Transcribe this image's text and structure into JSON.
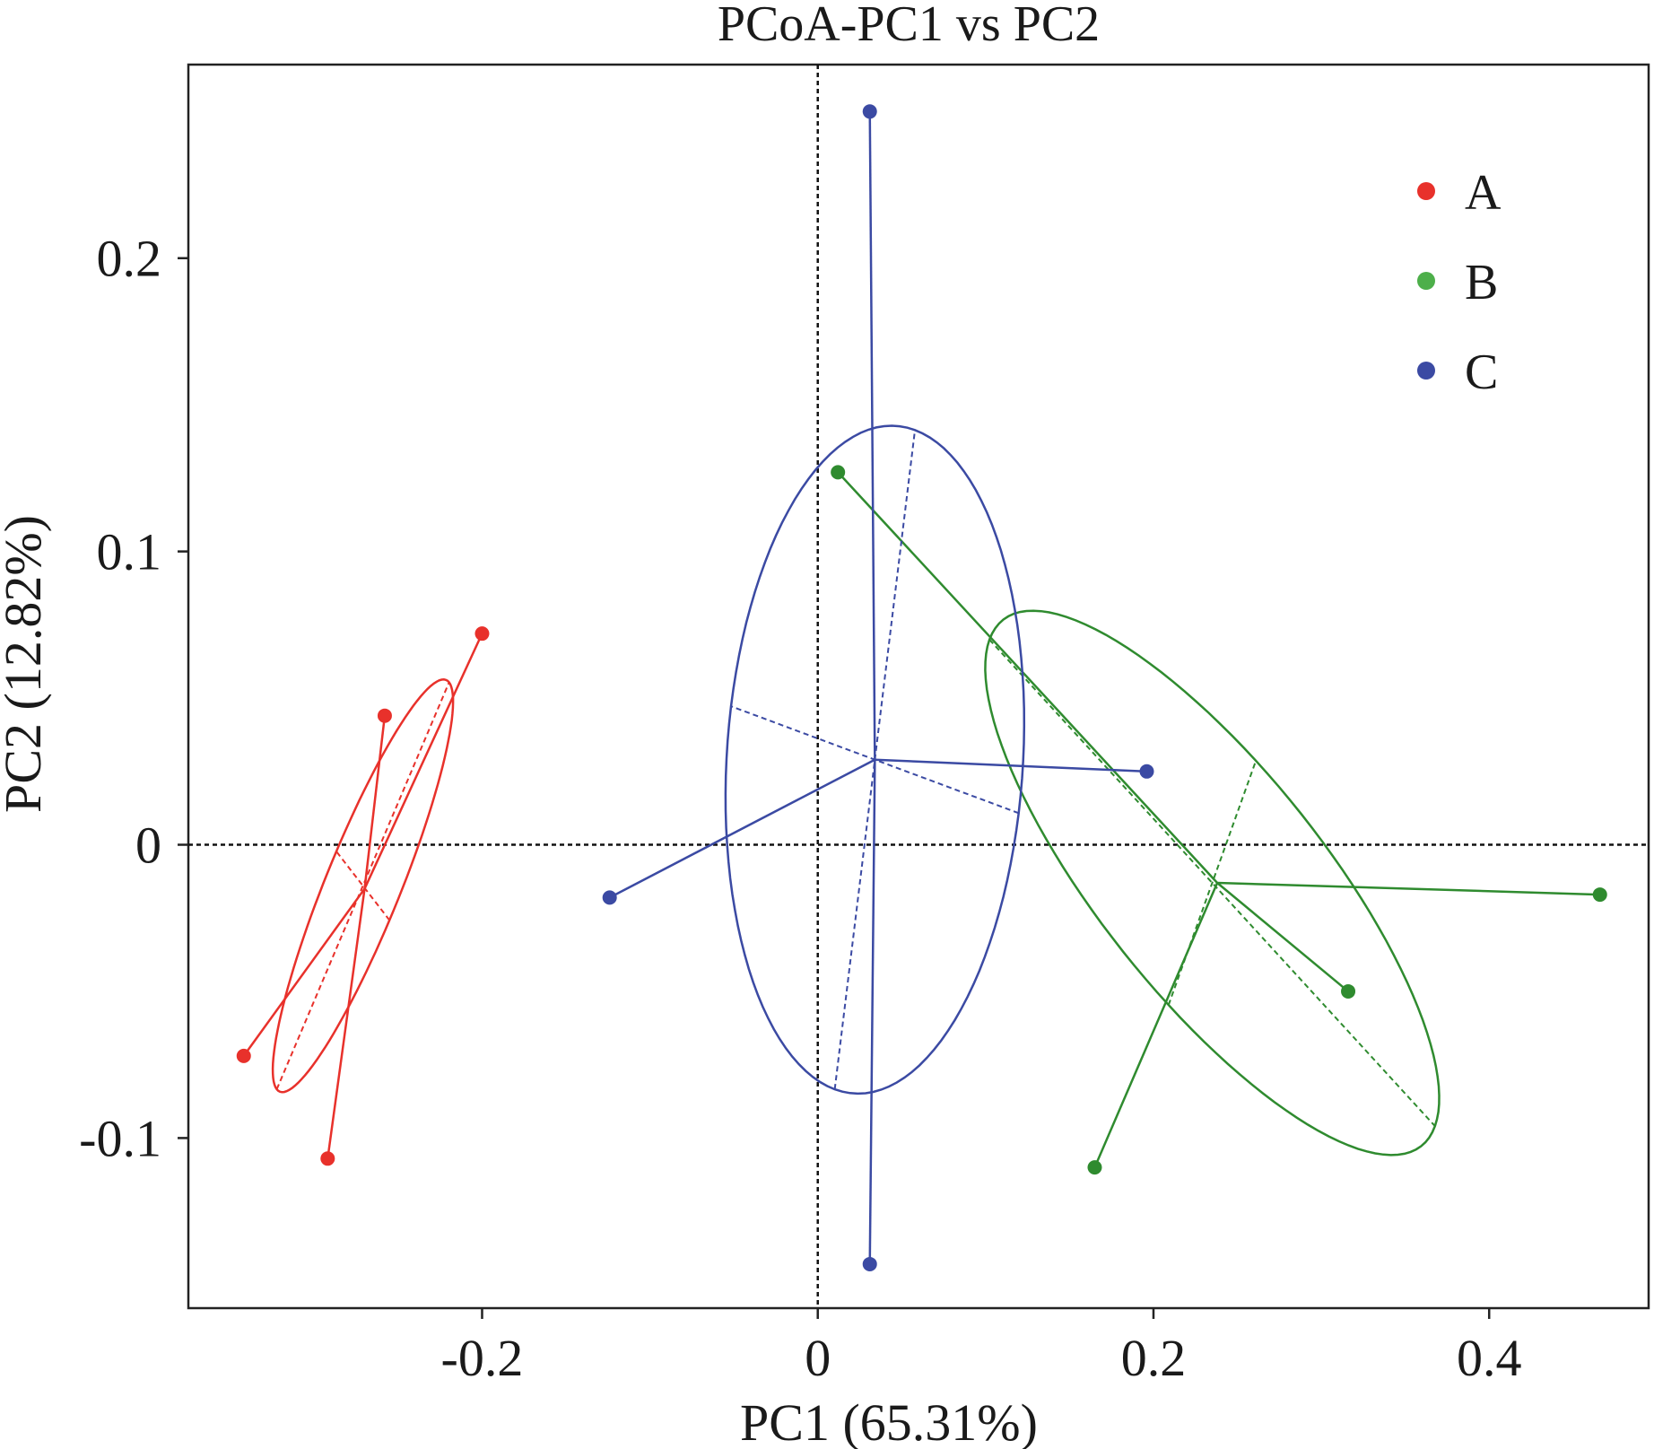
{
  "chart_data": {
    "type": "scatter",
    "title": "PCoA-PC1 vs PC2",
    "xlabel": "PC1 (65.31%)",
    "ylabel": "PC2 (12.82%)",
    "xlim": [
      -0.375,
      0.495
    ],
    "ylim": [
      -0.158,
      0.266
    ],
    "xticks": [
      -0.2,
      0,
      0.2,
      0.4
    ],
    "xtick_labels": [
      "-0.2",
      "0",
      "0.2",
      "0.4"
    ],
    "yticks": [
      -0.1,
      0,
      0.1,
      0.2
    ],
    "ytick_labels": [
      "-0.1",
      "0",
      "0.1",
      "0.2"
    ],
    "reference_lines": {
      "x": 0,
      "y": 0,
      "style": "dashed"
    },
    "grid": false,
    "legend_position": "top-right",
    "series": [
      {
        "name": "A",
        "color": "#e8312b",
        "line_color": "#e8312b",
        "centroid": [
          -0.27,
          -0.015
        ],
        "points": [
          [
            -0.2,
            0.072
          ],
          [
            -0.258,
            0.044
          ],
          [
            -0.342,
            -0.072
          ],
          [
            -0.292,
            -0.107
          ]
        ],
        "ellipse": {
          "cx": -0.271,
          "cy": -0.014,
          "semi_major": 0.0863,
          "semi_minor": 0.0197,
          "angle_deg": 53.5
        }
      },
      {
        "name": "B",
        "color": "#4daf4a",
        "line_color": "#2f8b2f",
        "centroid": [
          0.238,
          -0.013
        ],
        "points": [
          [
            0.012,
            0.127
          ],
          [
            0.466,
            -0.017
          ],
          [
            0.316,
            -0.05
          ],
          [
            0.165,
            -0.11
          ]
        ],
        "ellipse": {
          "cx": 0.235,
          "cy": -0.013,
          "semi_major": 0.1565,
          "semi_minor": 0.0491,
          "angle_deg": -32
        }
      },
      {
        "name": "C",
        "color": "#3b4aa3",
        "line_color": "#3b4aa3",
        "centroid": [
          0.034,
          0.029
        ],
        "points": [
          [
            0.031,
            0.25
          ],
          [
            0.196,
            0.025
          ],
          [
            -0.124,
            -0.018
          ],
          [
            0.031,
            -0.143
          ]
        ],
        "ellipse": {
          "cx": 0.034,
          "cy": 0.029,
          "semi_major": 0.1149,
          "semi_minor": 0.0876,
          "angle_deg": 78
        }
      }
    ]
  }
}
